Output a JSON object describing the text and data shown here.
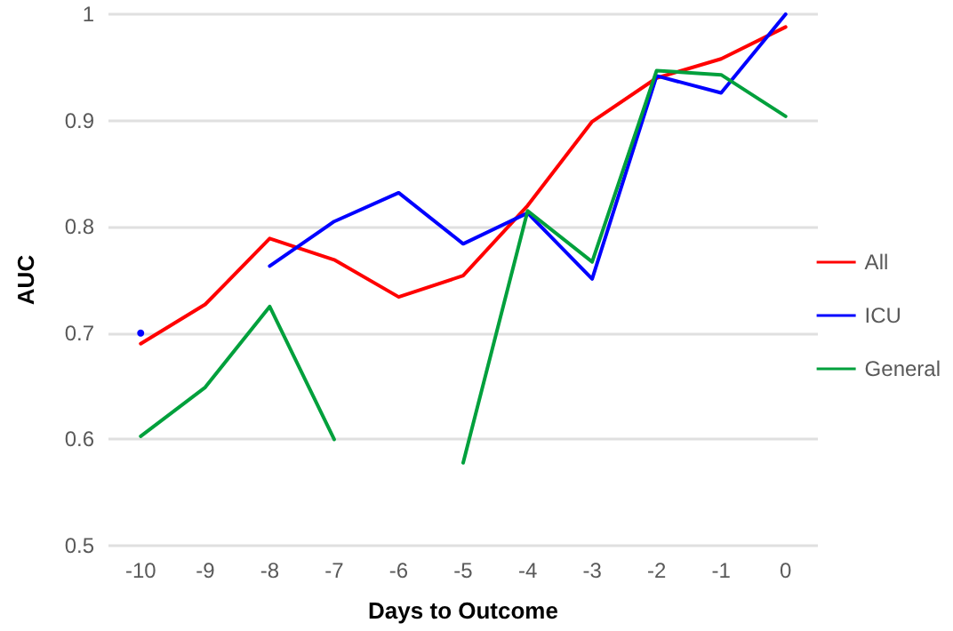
{
  "chart_data": {
    "type": "line",
    "xlabel": "Days to Outcome",
    "ylabel": "AUC",
    "categories": [
      "-10",
      "-9",
      "-8",
      "-7",
      "-6",
      "-5",
      "-4",
      "-3",
      "-2",
      "-1",
      "0"
    ],
    "series": [
      {
        "name": "All",
        "color": "#ff0000",
        "values": [
          0.69,
          0.727,
          0.789,
          0.769,
          0.734,
          0.754,
          0.82,
          0.899,
          0.94,
          0.958,
          0.988
        ]
      },
      {
        "name": "ICU",
        "color": "#0000ff",
        "values": [
          0.7,
          null,
          0.763,
          0.805,
          0.832,
          0.784,
          0.813,
          0.751,
          0.942,
          0.926,
          1.0
        ]
      },
      {
        "name": "General",
        "color": "#00a03c",
        "values": [
          0.603,
          0.649,
          0.725,
          0.6,
          null,
          0.578,
          0.815,
          0.767,
          0.947,
          0.943,
          0.904
        ]
      }
    ],
    "ylim": [
      0.5,
      1
    ],
    "yticks": [
      0.5,
      0.6,
      0.7,
      0.8,
      0.9,
      1
    ],
    "grid": "y",
    "legend": "right",
    "marker": "none",
    "line_style": "solid"
  }
}
